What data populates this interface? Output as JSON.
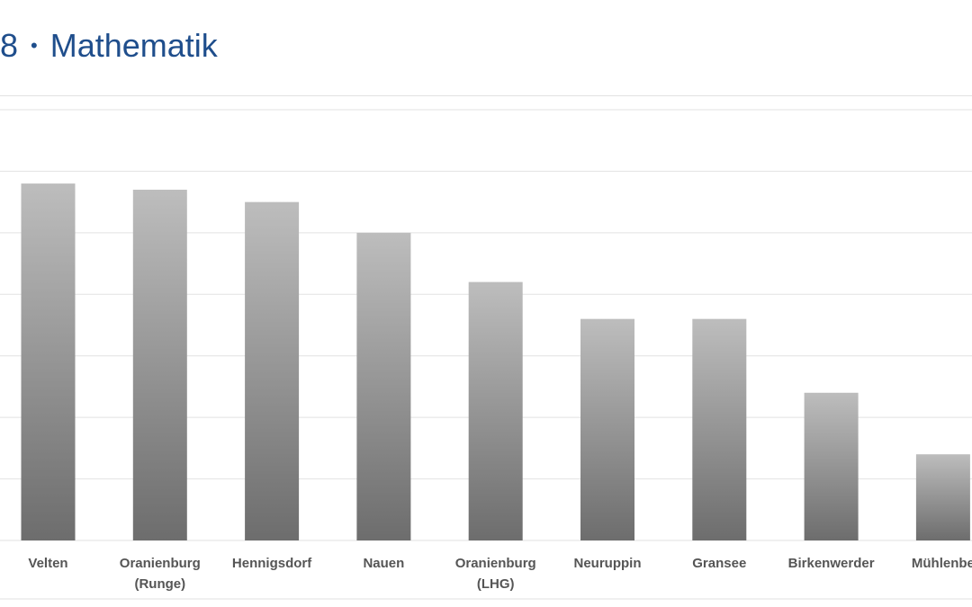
{
  "header": {
    "title_prefix": "8",
    "separator": "•",
    "title_main": "Mathematik"
  },
  "colors": {
    "title": "#1f4e8c",
    "bar_top": "#bdbdbd",
    "bar_bottom": "#6d6d6d",
    "gridline": "#e2e2e2",
    "label": "#555555"
  },
  "chart_data": {
    "type": "bar",
    "title": "",
    "xlabel": "",
    "ylabel": "",
    "categories": [
      [
        "Velten"
      ],
      [
        "Oranienburg",
        "(Runge)"
      ],
      [
        "Hennigsdorf"
      ],
      [
        "Nauen"
      ],
      [
        "Oranienburg",
        "(LHG)"
      ],
      [
        "Neuruppin"
      ],
      [
        "Gransee"
      ],
      [
        "Birkenwerder"
      ],
      [
        "Mühlenbe"
      ]
    ],
    "values": [
      5.8,
      5.7,
      5.5,
      5.0,
      4.2,
      3.6,
      3.6,
      2.4,
      1.4
    ],
    "ylim": [
      0,
      7
    ],
    "grid": true,
    "y_tick_labels_visible": false,
    "legend": "none"
  }
}
